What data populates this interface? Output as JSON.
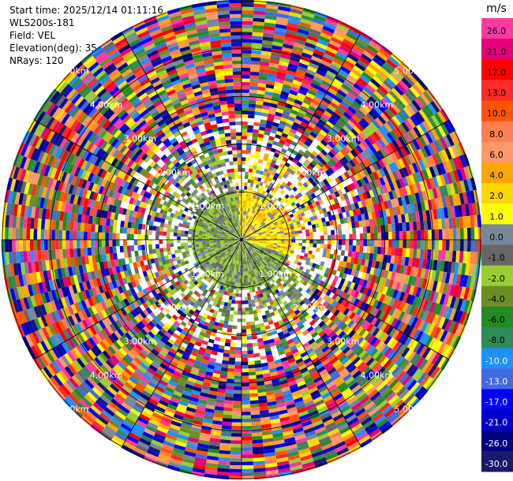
{
  "header": {
    "start_time": "Start time: 2025/12/14 01:11:16",
    "site": "WLS200s-181",
    "field": "Field: VEL",
    "elevation": "Elevation(deg): 35.00",
    "nrays": "NRays: 120"
  },
  "chart_data": {
    "type": "heatmap",
    "projection": "polar-ppi",
    "field": "VEL",
    "units": "m/s",
    "elevation_deg": 35.0,
    "n_rays": 120,
    "max_range_km": 5.0,
    "range_rings_km": [
      1.0,
      2.0,
      3.0,
      4.0,
      5.0
    ],
    "ring_labels": [
      "1.00km",
      "2.00km",
      "3.00km",
      "4.00km",
      "5.00km"
    ],
    "grid": true,
    "colorbar": {
      "placement": "right",
      "unit_label": "m/s",
      "ticks": [
        "26.0",
        "21.0",
        "17.0",
        "13.0",
        "10.0",
        "8.0",
        "6.0",
        "4.0",
        "2.0",
        "1.0",
        "0.0",
        "-1.0",
        "-2.0",
        "-4.0",
        "-6.0",
        "-8.0",
        "-10.0",
        "-13.0",
        "-17.0",
        "-21.0",
        "-26.0",
        "-30.0"
      ],
      "colors": [
        "#fe3aa0",
        "#e4007c",
        "#ff0000",
        "#ff2a2a",
        "#ff5500",
        "#ff7f50",
        "#ff9966",
        "#ffa500",
        "#ffd700",
        "#ffff00",
        "#778899",
        "#666666",
        "#9acd32",
        "#6b8e23",
        "#228b22",
        "#2e8b57",
        "#1e90ff",
        "#4169e1",
        "#0000ff",
        "#0000cd",
        "#000080",
        "#191970"
      ]
    }
  }
}
